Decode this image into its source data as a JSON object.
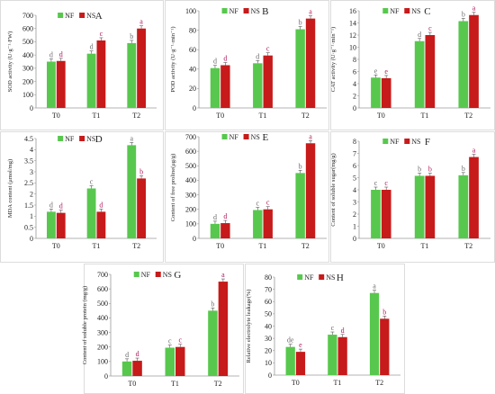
{
  "colors": {
    "NF": "#57c84d",
    "NS": "#c71a1a",
    "letter_NF": "#6b6b6b",
    "letter_NS": "#b0185a",
    "panel_border": "#dcdcdc"
  },
  "chart_data": [
    {
      "type": "bar",
      "panel_label": "A",
      "categories": [
        "T0",
        "T1",
        "T2"
      ],
      "series": [
        {
          "name": "NF",
          "values": [
            350,
            410,
            490
          ],
          "letters": [
            "d",
            "d",
            "b"
          ]
        },
        {
          "name": "NS",
          "values": [
            355,
            510,
            600
          ],
          "letters": [
            "d",
            "c",
            "a"
          ]
        }
      ],
      "ylabel": "SOD activity (U·g⁻¹·FW)",
      "ylim": [
        0,
        700
      ],
      "yticks": [
        "0",
        "100",
        "200",
        "300",
        "400",
        "500",
        "600",
        "700"
      ],
      "legend": "top"
    },
    {
      "type": "bar",
      "panel_label": "B",
      "categories": [
        "T0",
        "T1",
        "T2"
      ],
      "series": [
        {
          "name": "NF",
          "values": [
            41,
            46,
            81
          ],
          "letters": [
            "d",
            "d",
            "b"
          ]
        },
        {
          "name": "NS",
          "values": [
            44,
            54,
            92
          ],
          "letters": [
            "d",
            "c",
            "a"
          ]
        }
      ],
      "ylabel": "POD activity (U·g⁻¹·min⁻¹)",
      "ylim": [
        0,
        100
      ],
      "yticks": [
        "0",
        "20",
        "40",
        "60",
        "80",
        "100"
      ],
      "legend": "top"
    },
    {
      "type": "bar",
      "panel_label": "C",
      "categories": [
        "T0",
        "T1",
        "T2"
      ],
      "series": [
        {
          "name": "NF",
          "values": [
            5.0,
            11.0,
            14.3
          ],
          "letters": [
            "e",
            "d",
            "b"
          ]
        },
        {
          "name": "NS",
          "values": [
            4.9,
            12.0,
            15.3
          ],
          "letters": [
            "e",
            "c",
            "a"
          ]
        }
      ],
      "ylabel": "CAT activity (U·g⁻¹·min⁻¹)",
      "ylim": [
        0,
        16
      ],
      "yticks": [
        "0",
        "2",
        "4",
        "6",
        "8",
        "10",
        "12",
        "14",
        "16"
      ],
      "legend": "top"
    },
    {
      "type": "bar",
      "panel_label": "D",
      "categories": [
        "T0",
        "T1",
        "T2"
      ],
      "series": [
        {
          "name": "NF",
          "values": [
            1.2,
            2.25,
            4.2
          ],
          "letters": [
            "d",
            "c",
            "a"
          ]
        },
        {
          "name": "NS",
          "values": [
            1.15,
            1.2,
            2.7
          ],
          "letters": [
            "d",
            "d",
            "b"
          ]
        }
      ],
      "ylabel": "MDA content (μmol/mg)",
      "ylim": [
        0,
        4.5
      ],
      "yticks": [
        "0",
        "0.5",
        "1",
        "1.5",
        "2",
        "2.5",
        "3",
        "3.5",
        "4",
        "4.5"
      ],
      "legend": "top"
    },
    {
      "type": "bar",
      "panel_label": "E",
      "categories": [
        "T0",
        "T1",
        "T2"
      ],
      "series": [
        {
          "name": "NF",
          "values": [
            100,
            195,
            450
          ],
          "letters": [
            "d",
            "c",
            "b"
          ]
        },
        {
          "name": "NS",
          "values": [
            105,
            200,
            655
          ],
          "letters": [
            "d",
            "c",
            "a"
          ]
        }
      ],
      "ylabel": "Content of free proline(μg/g)",
      "ylim": [
        0,
        700
      ],
      "yticks": [
        "0",
        "100",
        "200",
        "300",
        "400",
        "500",
        "600",
        "700"
      ],
      "legend": "top"
    },
    {
      "type": "bar",
      "panel_label": "F",
      "categories": [
        "T0",
        "T1",
        "T2"
      ],
      "series": [
        {
          "name": "NF",
          "values": [
            4.0,
            5.15,
            5.2
          ],
          "letters": [
            "c",
            "b",
            "b"
          ]
        },
        {
          "name": "NS",
          "values": [
            4.0,
            5.15,
            6.7
          ],
          "letters": [
            "c",
            "b",
            "a"
          ]
        }
      ],
      "ylabel": "Content of soluble sugar(mg/g)",
      "ylim": [
        0,
        8
      ],
      "yticks": [
        "0",
        "1",
        "2",
        "3",
        "4",
        "5",
        "6",
        "7",
        "8"
      ],
      "legend": "top"
    },
    {
      "type": "bar",
      "panel_label": "G",
      "categories": [
        "T0",
        "T1",
        "T2"
      ],
      "series": [
        {
          "name": "NF",
          "values": [
            100,
            195,
            450
          ],
          "letters": [
            "d",
            "c",
            "b"
          ]
        },
        {
          "name": "NS",
          "values": [
            105,
            200,
            650
          ],
          "letters": [
            "d",
            "c",
            "a"
          ]
        }
      ],
      "ylabel": "Content of soluble protein (mg/g)",
      "ylim": [
        0,
        700
      ],
      "yticks": [
        "0",
        "100",
        "200",
        "300",
        "400",
        "500",
        "600",
        "700"
      ],
      "legend": "top"
    },
    {
      "type": "bar",
      "panel_label": "H",
      "categories": [
        "T0",
        "T1",
        "T2"
      ],
      "series": [
        {
          "name": "NF",
          "values": [
            23,
            33,
            67
          ],
          "letters": [
            "de",
            "c",
            "a"
          ]
        },
        {
          "name": "NS",
          "values": [
            19,
            31,
            46
          ],
          "letters": [
            "e",
            "d",
            "b"
          ]
        }
      ],
      "ylabel": "Relative electrolyte leakage(%)",
      "ylim": [
        0,
        80
      ],
      "yticks": [
        "0",
        "10",
        "20",
        "30",
        "40",
        "50",
        "60",
        "70",
        "80"
      ],
      "legend": "top"
    }
  ]
}
